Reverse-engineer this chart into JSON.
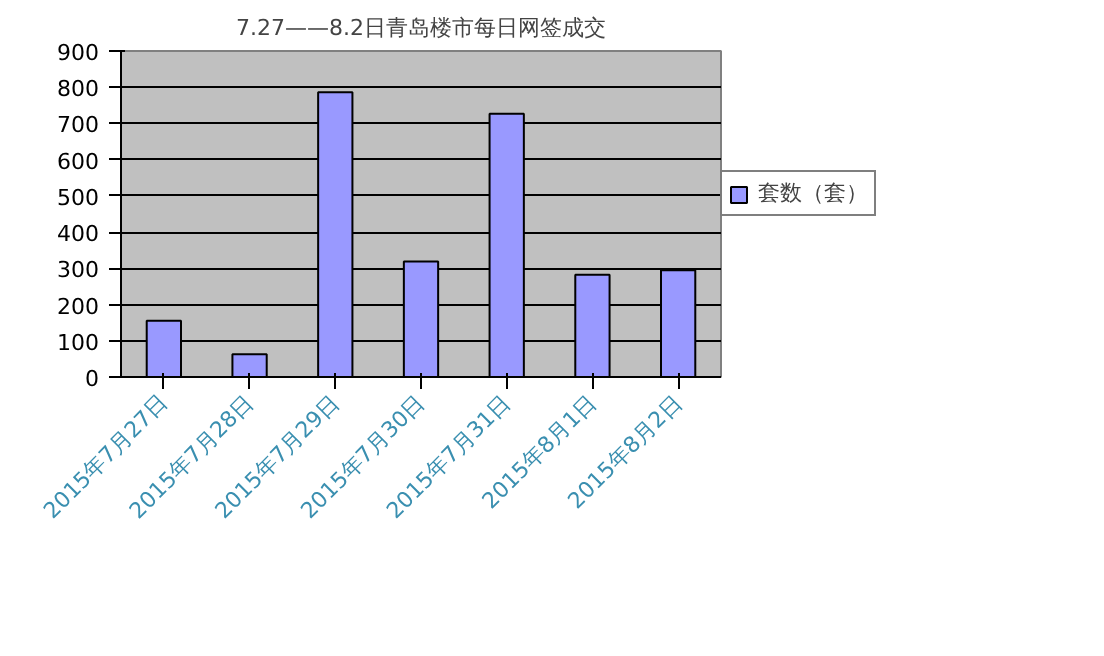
{
  "chart_data": {
    "type": "bar",
    "title": "7.27——8.2日青岛楼市每日网签成交",
    "categories": [
      "2015年7月27日",
      "2015年7月28日",
      "2015年7月29日",
      "2015年7月30日",
      "2015年7月31日",
      "2015年8月1日",
      "2015年8月2日"
    ],
    "series": [
      {
        "name": "套数（套）",
        "color": "#9999ff",
        "values": [
          155,
          63,
          786,
          319,
          727,
          282,
          295
        ]
      }
    ],
    "ylim": [
      0,
      900
    ],
    "yticks": [
      0,
      100,
      200,
      300,
      400,
      500,
      600,
      700,
      800,
      900
    ],
    "grid": "y",
    "legend": "right"
  }
}
